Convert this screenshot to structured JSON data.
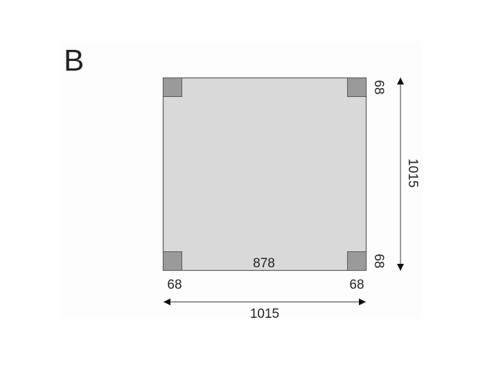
{
  "figure_label": "B",
  "dimensions": {
    "width_total": "1015",
    "height_total": "1015",
    "inner_span": "878",
    "corner_bottom_left": "68",
    "corner_bottom_right": "68",
    "corner_right_top": "68",
    "corner_right_bottom": "68"
  },
  "colors": {
    "panel": "#d9d9d9",
    "corner_post": "#9a9a9a",
    "outline": "#555555",
    "background": "#fdfdfd"
  }
}
